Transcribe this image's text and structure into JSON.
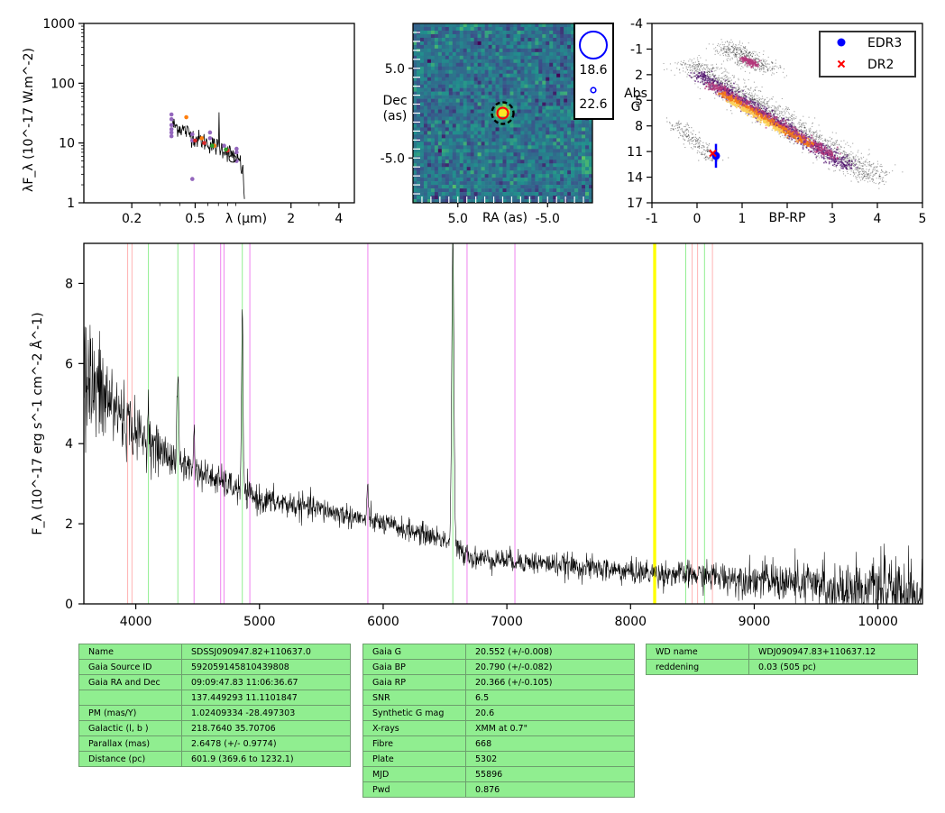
{
  "chart_data": [
    {
      "type": "scatter",
      "panel": "sed",
      "ylabel": "λF_λ (10^-17 W.m^-2)",
      "xlabel": "λ (μm)",
      "xscale": "log",
      "yscale": "log",
      "xlim": [
        0.1,
        5
      ],
      "ylim": [
        1,
        1000
      ],
      "xticks": [
        {
          "v": 0.2,
          "t": "0.2"
        },
        {
          "v": 0.5,
          "t": "0.5"
        },
        {
          "v": 2,
          "t": "2"
        },
        {
          "v": 4,
          "t": "4"
        }
      ],
      "yticks": [
        {
          "v": 1,
          "t": "1"
        },
        {
          "v": 10,
          "t": "10"
        },
        {
          "v": 100,
          "t": "100"
        },
        {
          "v": 1000,
          "t": "1000"
        }
      ],
      "series": [
        {
          "color": "#9467bd",
          "points": [
            [
              0.355,
              30
            ],
            [
              0.355,
              25
            ],
            [
              0.355,
              20
            ],
            [
              0.355,
              17
            ],
            [
              0.355,
              15
            ],
            [
              0.355,
              13
            ],
            [
              0.48,
              14
            ],
            [
              0.48,
              11
            ],
            [
              0.48,
              2.5
            ],
            [
              0.62,
              15
            ],
            [
              0.62,
              12
            ],
            [
              0.76,
              9
            ],
            [
              0.91,
              8
            ],
            [
              0.91,
              7
            ],
            [
              0.91,
              5
            ]
          ]
        },
        {
          "color": "#ff7f0e",
          "points": [
            [
              0.44,
              27
            ],
            [
              0.55,
              12
            ],
            [
              0.66,
              9
            ]
          ]
        },
        {
          "color": "#d62728",
          "points": [
            [
              0.5,
              11
            ],
            [
              0.57,
              10
            ],
            [
              0.8,
              7.5
            ]
          ]
        },
        {
          "color": "#2ca02c",
          "points": [
            [
              0.64,
              9
            ],
            [
              0.78,
              7.8
            ]
          ]
        },
        {
          "color": "#000000",
          "points": [
            [
              0.86,
              5.5
            ]
          ]
        }
      ],
      "model_curve": [
        [
          0.36,
          20
        ],
        [
          0.4,
          18
        ],
        [
          0.45,
          15
        ],
        [
          0.5,
          12
        ],
        [
          0.55,
          11
        ],
        [
          0.6,
          10
        ],
        [
          0.65,
          9
        ],
        [
          0.7,
          8.5
        ],
        [
          0.75,
          8
        ],
        [
          0.8,
          7
        ],
        [
          0.85,
          6.5
        ],
        [
          0.9,
          6
        ],
        [
          0.95,
          5
        ],
        [
          1.0,
          3
        ],
        [
          1.02,
          1
        ]
      ]
    },
    {
      "type": "heatmap",
      "panel": "image",
      "xlabel": "RA (as)",
      "ylabel": "Dec\n(as)",
      "xlim": [
        10,
        -10
      ],
      "ylim": [
        -10,
        10
      ],
      "xticks": [
        {
          "v": 5,
          "t": "5.0"
        },
        {
          "v": -5,
          "t": "-5.0"
        }
      ],
      "yticks": [
        {
          "v": 5,
          "t": "5.0"
        },
        {
          "v": -5,
          "t": "-5.0"
        }
      ],
      "source": [
        0,
        0
      ],
      "legend": [
        {
          "label": "18.6",
          "marker": "large-circle"
        },
        {
          "label": "22.6",
          "marker": "small-circle"
        }
      ]
    },
    {
      "type": "scatter",
      "panel": "hr-diagram",
      "xlabel": "BP-RP",
      "ylabel": "Abs\nG",
      "xlim": [
        -1,
        5
      ],
      "ylim": [
        17,
        -4
      ],
      "xticks": [
        {
          "v": -1,
          "t": "-1"
        },
        {
          "v": 0,
          "t": "0"
        },
        {
          "v": 1,
          "t": "1"
        },
        {
          "v": 2,
          "t": "2"
        },
        {
          "v": 3,
          "t": "3"
        },
        {
          "v": 4,
          "t": "4"
        },
        {
          "v": 5,
          "t": "5"
        }
      ],
      "yticks": [
        {
          "v": -4,
          "t": "-4"
        },
        {
          "v": -1,
          "t": "-1"
        },
        {
          "v": 2,
          "t": "2"
        },
        {
          "v": 5,
          "t": "5"
        },
        {
          "v": 8,
          "t": "8"
        },
        {
          "v": 11,
          "t": "11"
        },
        {
          "v": 14,
          "t": "14"
        },
        {
          "v": 17,
          "t": "17"
        }
      ],
      "points": [
        {
          "name": "EDR3",
          "x": 0.42,
          "y": 11.5,
          "yerr": 1.4,
          "color": "#0000ff",
          "marker": "circle"
        },
        {
          "name": "DR2",
          "x": 0.35,
          "y": 11.2,
          "color": "#ff0000",
          "marker": "x"
        }
      ],
      "legend_position": "top-right"
    },
    {
      "type": "line",
      "panel": "spectrum",
      "ylabel": "F_λ (10^-17 erg s^-1 cm^-2 Å^-1)",
      "xlim": [
        3580,
        10360
      ],
      "ylim": [
        0,
        9
      ],
      "xticks": [
        4000,
        5000,
        6000,
        7000,
        8000,
        9000,
        10000
      ],
      "yticks": [
        0,
        2,
        4,
        6,
        8
      ],
      "continuum": [
        [
          3580,
          5.6
        ],
        [
          3800,
          5.0
        ],
        [
          4000,
          4.3
        ],
        [
          4200,
          3.8
        ],
        [
          4500,
          3.3
        ],
        [
          4800,
          2.9
        ],
        [
          5000,
          2.6
        ],
        [
          5500,
          2.35
        ],
        [
          6000,
          2.0
        ],
        [
          6500,
          1.6
        ],
        [
          6700,
          1.15
        ],
        [
          7000,
          1.1
        ],
        [
          7500,
          0.95
        ],
        [
          8000,
          0.8
        ],
        [
          8500,
          0.72
        ],
        [
          9000,
          0.62
        ],
        [
          9500,
          0.45
        ],
        [
          10000,
          0.35
        ],
        [
          10360,
          0.2
        ]
      ],
      "noise": [
        [
          3580,
          1.6
        ],
        [
          4000,
          0.6
        ],
        [
          4500,
          0.35
        ],
        [
          6000,
          0.25
        ],
        [
          7000,
          0.25
        ],
        [
          8500,
          0.3
        ],
        [
          9200,
          0.45
        ],
        [
          10360,
          0.75
        ]
      ],
      "emission_lines": [
        [
          4102,
          0.8
        ],
        [
          4340,
          2.3
        ],
        [
          4471,
          0.9
        ],
        [
          4861,
          4.6
        ],
        [
          5876,
          0.8
        ],
        [
          6563,
          7.6
        ],
        [
          6678,
          0.3
        ]
      ],
      "vlines": [
        {
          "x": 3934,
          "color": "#ffb3b3"
        },
        {
          "x": 3969,
          "color": "#ffb3b3"
        },
        {
          "x": 4102,
          "color": "#90ee90"
        },
        {
          "x": 4340,
          "color": "#90ee90"
        },
        {
          "x": 4471,
          "color": "#ee82ee"
        },
        {
          "x": 4686,
          "color": "#ee82ee"
        },
        {
          "x": 4713,
          "color": "#ee82ee"
        },
        {
          "x": 4861,
          "color": "#90ee90"
        },
        {
          "x": 4922,
          "color": "#ee82ee"
        },
        {
          "x": 5876,
          "color": "#ee82ee"
        },
        {
          "x": 6563,
          "color": "#90ee90"
        },
        {
          "x": 6678,
          "color": "#ee82ee"
        },
        {
          "x": 7065,
          "color": "#ee82ee"
        },
        {
          "x": 8190,
          "color": "#ffff00"
        },
        {
          "x": 8200,
          "color": "#ffff00"
        },
        {
          "x": 8446,
          "color": "#90ee90"
        },
        {
          "x": 8498,
          "color": "#ffb3b3"
        },
        {
          "x": 8542,
          "color": "#ffb3b3"
        },
        {
          "x": 8598,
          "color": "#90ee90"
        },
        {
          "x": 8662,
          "color": "#ffb3b3"
        }
      ]
    }
  ],
  "tables": {
    "left": [
      [
        "Name",
        "SDSSJ090947.82+110637.0"
      ],
      [
        "Gaia Source ID",
        "592059145810439808"
      ],
      [
        "Gaia RA and Dec",
        "09:09:47.83    11:06:36.67"
      ],
      [
        "",
        "137.449293    11.1101847"
      ],
      [
        "PM (mas/Y)",
        "1.02409334    -28.497303"
      ],
      [
        "Galactic (l, b )",
        "218.7640    35.70706"
      ],
      [
        "Parallax (mas)",
        "2.6478 (+/- 0.9774)"
      ],
      [
        "Distance (pc)",
        "601.9 (369.6 to 1232.1)"
      ]
    ],
    "middle": [
      [
        "Gaia G",
        "20.552 (+/-0.008)"
      ],
      [
        "Gaia BP",
        "20.790 (+/-0.082)"
      ],
      [
        "Gaia RP",
        "20.366 (+/-0.105)"
      ],
      [
        "SNR",
        "6.5"
      ],
      [
        "Synthetic G mag",
        "20.6"
      ],
      [
        "X-rays",
        "XMM at 0.7\""
      ],
      [
        "Fibre",
        "668"
      ],
      [
        "Plate",
        "5302"
      ],
      [
        "MJD",
        "55896"
      ],
      [
        "Pwd",
        "0.876"
      ]
    ],
    "right": [
      [
        "WD name",
        "WDJ090947.83+110637.12"
      ],
      [
        "reddening",
        "0.03 (505 pc)"
      ]
    ]
  },
  "colors": {
    "accent": "#0000ff",
    "table_bg": "#90ee90",
    "hr_low": "#2d0a4a",
    "hr_high": "#fcd25a"
  }
}
